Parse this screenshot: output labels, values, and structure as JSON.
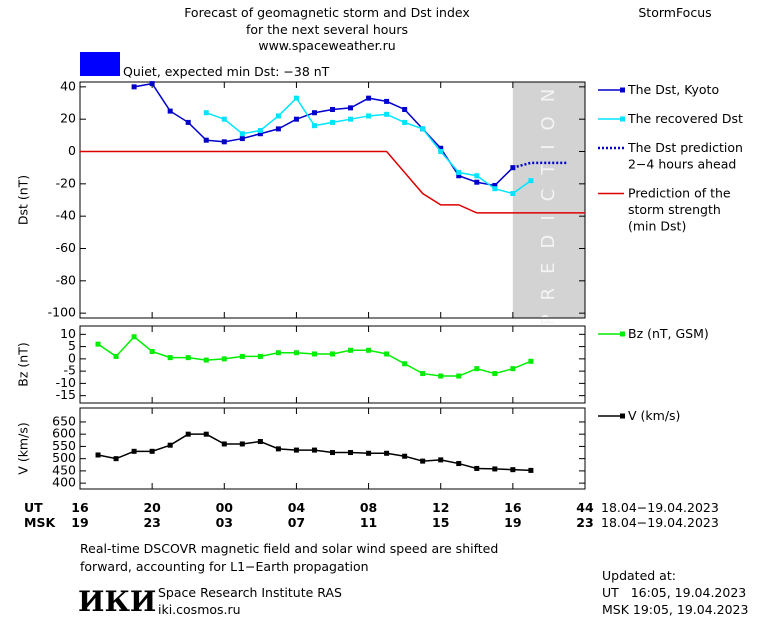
{
  "header": {
    "title_lines": [
      "Forecast of geomagnetic storm and Dst index",
      "for the next several hours",
      "www.spaceweather.ru"
    ],
    "brand": "StormFocus"
  },
  "status": {
    "label": "Quiet, expected min Dst: −38 nT",
    "color": "#0000ff"
  },
  "chart_data": [
    {
      "type": "line",
      "ylabel": "Dst (nT)",
      "xlim": [
        16,
        44
      ],
      "xticks": [
        16,
        20,
        24,
        28,
        32,
        36,
        40,
        44
      ],
      "ylim": [
        -103,
        43
      ],
      "yticks": [
        40,
        20,
        0,
        -20,
        -40,
        -60,
        -80,
        -100
      ],
      "prediction_region": {
        "xlim": [
          40,
          44
        ],
        "label": "PREDICTION",
        "color": "#d3d3d3"
      },
      "series": [
        {
          "name": "The Dst, Kyoto",
          "color": "#0000cc",
          "marker": "square",
          "line_style": "solid",
          "x": [
            19,
            20,
            21,
            22,
            23,
            24,
            25,
            26,
            27,
            28,
            29,
            30,
            31,
            32,
            33,
            34,
            35,
            36,
            37,
            38,
            39,
            40
          ],
          "values": [
            40,
            42,
            25,
            18,
            7,
            6,
            8,
            11,
            14,
            20,
            24,
            26,
            27,
            33,
            31,
            26,
            14,
            2,
            -15,
            -19,
            -21,
            -10
          ]
        },
        {
          "name": "The recovered Dst",
          "color": "#00e5ff",
          "marker": "square",
          "line_style": "solid",
          "x": [
            23,
            24,
            25,
            26,
            27,
            28,
            29,
            30,
            31,
            32,
            33,
            34,
            35,
            36,
            37,
            38,
            39,
            40,
            41
          ],
          "values": [
            24,
            20,
            11,
            13,
            22,
            33,
            16,
            18,
            20,
            22,
            23,
            18,
            14,
            0,
            -13,
            -15,
            -23,
            -26,
            -18
          ]
        },
        {
          "name": "The Dst prediction\n2−4 hours ahead",
          "color": "#0000cc",
          "marker": "none",
          "line_style": "dotted",
          "x": [
            40,
            41,
            42,
            43
          ],
          "values": [
            -10,
            -7,
            -7,
            -7
          ]
        },
        {
          "name": "Prediction of the\nstorm strength\n(min Dst)",
          "color": "#dd0000",
          "marker": "none",
          "line_style": "solid",
          "x": [
            16,
            33,
            34,
            35,
            36,
            37,
            38,
            44
          ],
          "values": [
            0,
            0,
            -13,
            -26,
            -33,
            -33,
            -38,
            -38
          ]
        }
      ]
    },
    {
      "type": "line",
      "ylabel": "Bz (nT)",
      "xlim": [
        16,
        44
      ],
      "xticks": [
        16,
        20,
        24,
        28,
        32,
        36,
        40,
        44
      ],
      "ylim": [
        -18,
        13.4
      ],
      "yticks": [
        10,
        5,
        0,
        -5,
        -10,
        -15
      ],
      "series": [
        {
          "name": "Bz (nT, GSM)",
          "color": "#00ee00",
          "marker": "square",
          "line_style": "solid",
          "x": [
            17,
            18,
            19,
            20,
            21,
            22,
            23,
            24,
            25,
            26,
            27,
            28,
            29,
            30,
            31,
            32,
            33,
            34,
            35,
            36,
            37,
            38,
            39,
            40,
            41
          ],
          "values": [
            6,
            1,
            9,
            3,
            0.5,
            0.5,
            -0.5,
            0,
            1,
            1,
            2.5,
            2.5,
            2,
            2,
            3.5,
            3.5,
            2,
            -2,
            -6,
            -7,
            -7,
            -4,
            -6,
            -4,
            -1
          ]
        }
      ]
    },
    {
      "type": "line",
      "ylabel": "V (km/s)",
      "xlim": [
        16,
        44
      ],
      "xticks": [
        16,
        20,
        {
          "value": 24,
          "label": "00"
        },
        {
          "value": 28,
          "label": "04"
        },
        {
          "value": 32,
          "label": "08"
        },
        {
          "value": 36,
          "label": "12"
        },
        {
          "value": 40,
          "label": "16"
        },
        44
      ],
      "xticks_msk": [
        {
          "value": 16,
          "label": "19"
        },
        {
          "value": 20,
          "label": "23"
        },
        {
          "value": 24,
          "label": "03"
        },
        {
          "value": 28,
          "label": "07"
        },
        {
          "value": 32,
          "label": "11"
        },
        {
          "value": 36,
          "label": "15"
        },
        {
          "value": 40,
          "label": "19"
        },
        {
          "value": 44,
          "label": "23"
        }
      ],
      "xlabel": "UT",
      "xlabel_msk": "MSK",
      "date_range": "18.04−19.04.2023",
      "date_range_msk": "18.04−19.04.2023",
      "ylim": [
        376,
        707
      ],
      "yticks": [
        650,
        600,
        550,
        500,
        450,
        400
      ],
      "series": [
        {
          "name": "V (km/s)",
          "color": "#000000",
          "marker": "square",
          "line_style": "solid",
          "x": [
            17,
            18,
            19,
            20,
            21,
            22,
            23,
            24,
            25,
            26,
            27,
            28,
            29,
            30,
            31,
            32,
            33,
            34,
            35,
            36,
            37,
            38,
            39,
            40,
            41
          ],
          "values": [
            515,
            500,
            530,
            530,
            555,
            600,
            600,
            560,
            560,
            570,
            540,
            535,
            535,
            525,
            525,
            522,
            522,
            510,
            490,
            495,
            480,
            460,
            458,
            455,
            452
          ]
        }
      ]
    }
  ],
  "footer": {
    "note_lines": [
      "Real-time DSCOVR magnetic field and solar wind speed are shifted",
      "forward, accounting for L1−Earth propagation"
    ],
    "logo": "ИКИ",
    "institute": "Space Research Institute RAS",
    "url": "iki.cosmos.ru",
    "updated_lines": [
      "Updated at:",
      "UT   16:05, 19.04.2023",
      "MSK 19:05, 19.04.2023"
    ]
  }
}
